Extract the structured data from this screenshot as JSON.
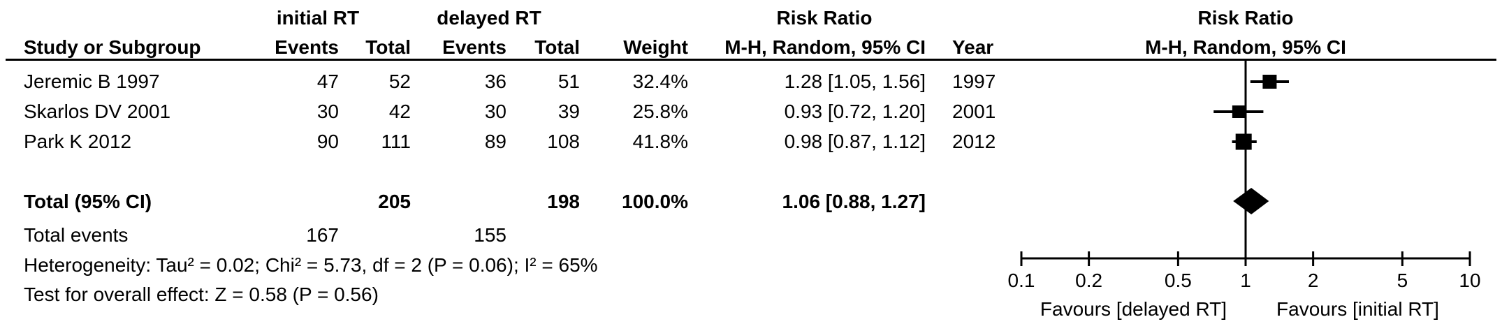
{
  "table": {
    "group1_header": "initial RT",
    "group2_header": "delayed RT",
    "rr_text_col_header": "Risk Ratio",
    "col_headers": {
      "study": "Study or Subgroup",
      "events1": "Events",
      "total1": "Total",
      "events2": "Events",
      "total2": "Total",
      "weight": "Weight",
      "mh_ci": "M-H, Random, 95% CI",
      "year": "Year"
    },
    "rows": [
      {
        "study": "Jeremic B 1997",
        "events1": "47",
        "total1": "52",
        "events2": "36",
        "total2": "51",
        "weight": "32.4%",
        "rr_ci": "1.28 [1.05, 1.56]",
        "year": "1997"
      },
      {
        "study": "Skarlos DV 2001",
        "events1": "30",
        "total1": "42",
        "events2": "30",
        "total2": "39",
        "weight": "25.8%",
        "rr_ci": "0.93 [0.72, 1.20]",
        "year": "2001"
      },
      {
        "study": "Park K 2012",
        "events1": "90",
        "total1": "111",
        "events2": "89",
        "total2": "108",
        "weight": "41.8%",
        "rr_ci": "0.98 [0.87, 1.12]",
        "year": "2012"
      }
    ],
    "total_row": {
      "label": "Total (95% CI)",
      "total1": "205",
      "total2": "198",
      "weight": "100.0%",
      "rr_ci": "1.06 [0.88, 1.27]"
    },
    "total_events_row": {
      "label": "Total events",
      "events1": "167",
      "events2": "155"
    },
    "heterogeneity": "Heterogeneity: Tau² = 0.02; Chi² = 5.73, df = 2 (P = 0.06); I² = 65%",
    "overall_effect": "Test for overall effect: Z = 0.58 (P = 0.56)"
  },
  "plot": {
    "title": "Risk Ratio",
    "subtitle": "M-H, Random, 95% CI",
    "favours_left": "Favours [delayed RT]",
    "favours_right": "Favours [initial RT]"
  },
  "chart_data": {
    "type": "forest",
    "effect_measure": "Risk Ratio",
    "model": "M-H, Random, 95% CI",
    "x_scale": "log10",
    "x_range": [
      0.1,
      10
    ],
    "x_ticks": [
      0.1,
      0.2,
      0.5,
      1,
      2,
      5,
      10
    ],
    "null_line": 1,
    "studies": [
      {
        "label": "Jeremic B 1997",
        "year": 1997,
        "events_initial": 47,
        "total_initial": 52,
        "events_delayed": 36,
        "total_delayed": 51,
        "weight_pct": 32.4,
        "rr": 1.28,
        "ci_low": 1.05,
        "ci_high": 1.56
      },
      {
        "label": "Skarlos DV 2001",
        "year": 2001,
        "events_initial": 30,
        "total_initial": 42,
        "events_delayed": 30,
        "total_delayed": 39,
        "weight_pct": 25.8,
        "rr": 0.93,
        "ci_low": 0.72,
        "ci_high": 1.2
      },
      {
        "label": "Park K 2012",
        "year": 2012,
        "events_initial": 90,
        "total_initial": 111,
        "events_delayed": 89,
        "total_delayed": 108,
        "weight_pct": 41.8,
        "rr": 0.98,
        "ci_low": 0.87,
        "ci_high": 1.12
      }
    ],
    "summary": {
      "label": "Total (95% CI)",
      "total_initial": 205,
      "total_delayed": 198,
      "total_events_initial": 167,
      "total_events_delayed": 155,
      "weight_pct": 100.0,
      "rr": 1.06,
      "ci_low": 0.88,
      "ci_high": 1.27
    },
    "heterogeneity": {
      "tau2": 0.02,
      "chi2": 5.73,
      "df": 2,
      "p": 0.06,
      "i2_pct": 65
    },
    "overall_effect": {
      "z": 0.58,
      "p": 0.56
    },
    "favours": [
      "Favours [delayed RT]",
      "Favours [initial RT]"
    ]
  }
}
